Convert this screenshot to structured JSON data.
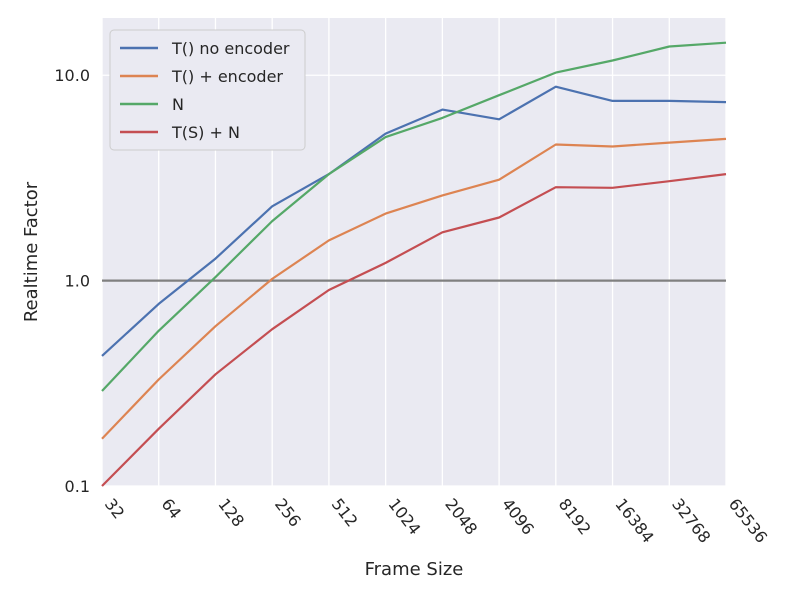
{
  "chart_data": {
    "type": "line",
    "title": "",
    "xlabel": "Frame Size",
    "ylabel": "Realtime Factor",
    "x_scale": "categorical",
    "y_scale": "log",
    "categories": [
      "32",
      "64",
      "128",
      "256",
      "512",
      "1024",
      "2048",
      "4096",
      "8192",
      "16384",
      "32768",
      "65536"
    ],
    "y_ticks": [
      0.1,
      1.0,
      10.0
    ],
    "y_tick_labels": [
      "0.1",
      "1.0",
      "10.0"
    ],
    "ylim": [
      0.1,
      19
    ],
    "grid": true,
    "legend_position": "top-left",
    "reference_line": {
      "y": 1.0,
      "color": "#808080"
    },
    "series": [
      {
        "name": "T() no encoder",
        "color": "#4c72b0",
        "values": [
          0.43,
          0.77,
          1.28,
          2.3,
          3.3,
          5.2,
          6.8,
          6.1,
          8.8,
          7.5,
          7.5,
          7.4
        ]
      },
      {
        "name": "T() + encoder",
        "color": "#dd8452",
        "values": [
          0.17,
          0.33,
          0.6,
          1.02,
          1.57,
          2.12,
          2.6,
          3.1,
          4.6,
          4.5,
          4.7,
          4.9
        ]
      },
      {
        "name": "N",
        "color": "#55a868",
        "values": [
          0.29,
          0.57,
          1.04,
          1.95,
          3.3,
          5.0,
          6.2,
          8.0,
          10.3,
          11.8,
          13.8,
          14.4
        ]
      },
      {
        "name": "T(S) + N",
        "color": "#c44e52",
        "values": [
          0.1,
          0.19,
          0.35,
          0.58,
          0.9,
          1.22,
          1.72,
          2.03,
          2.85,
          2.83,
          3.05,
          3.3
        ]
      }
    ]
  }
}
